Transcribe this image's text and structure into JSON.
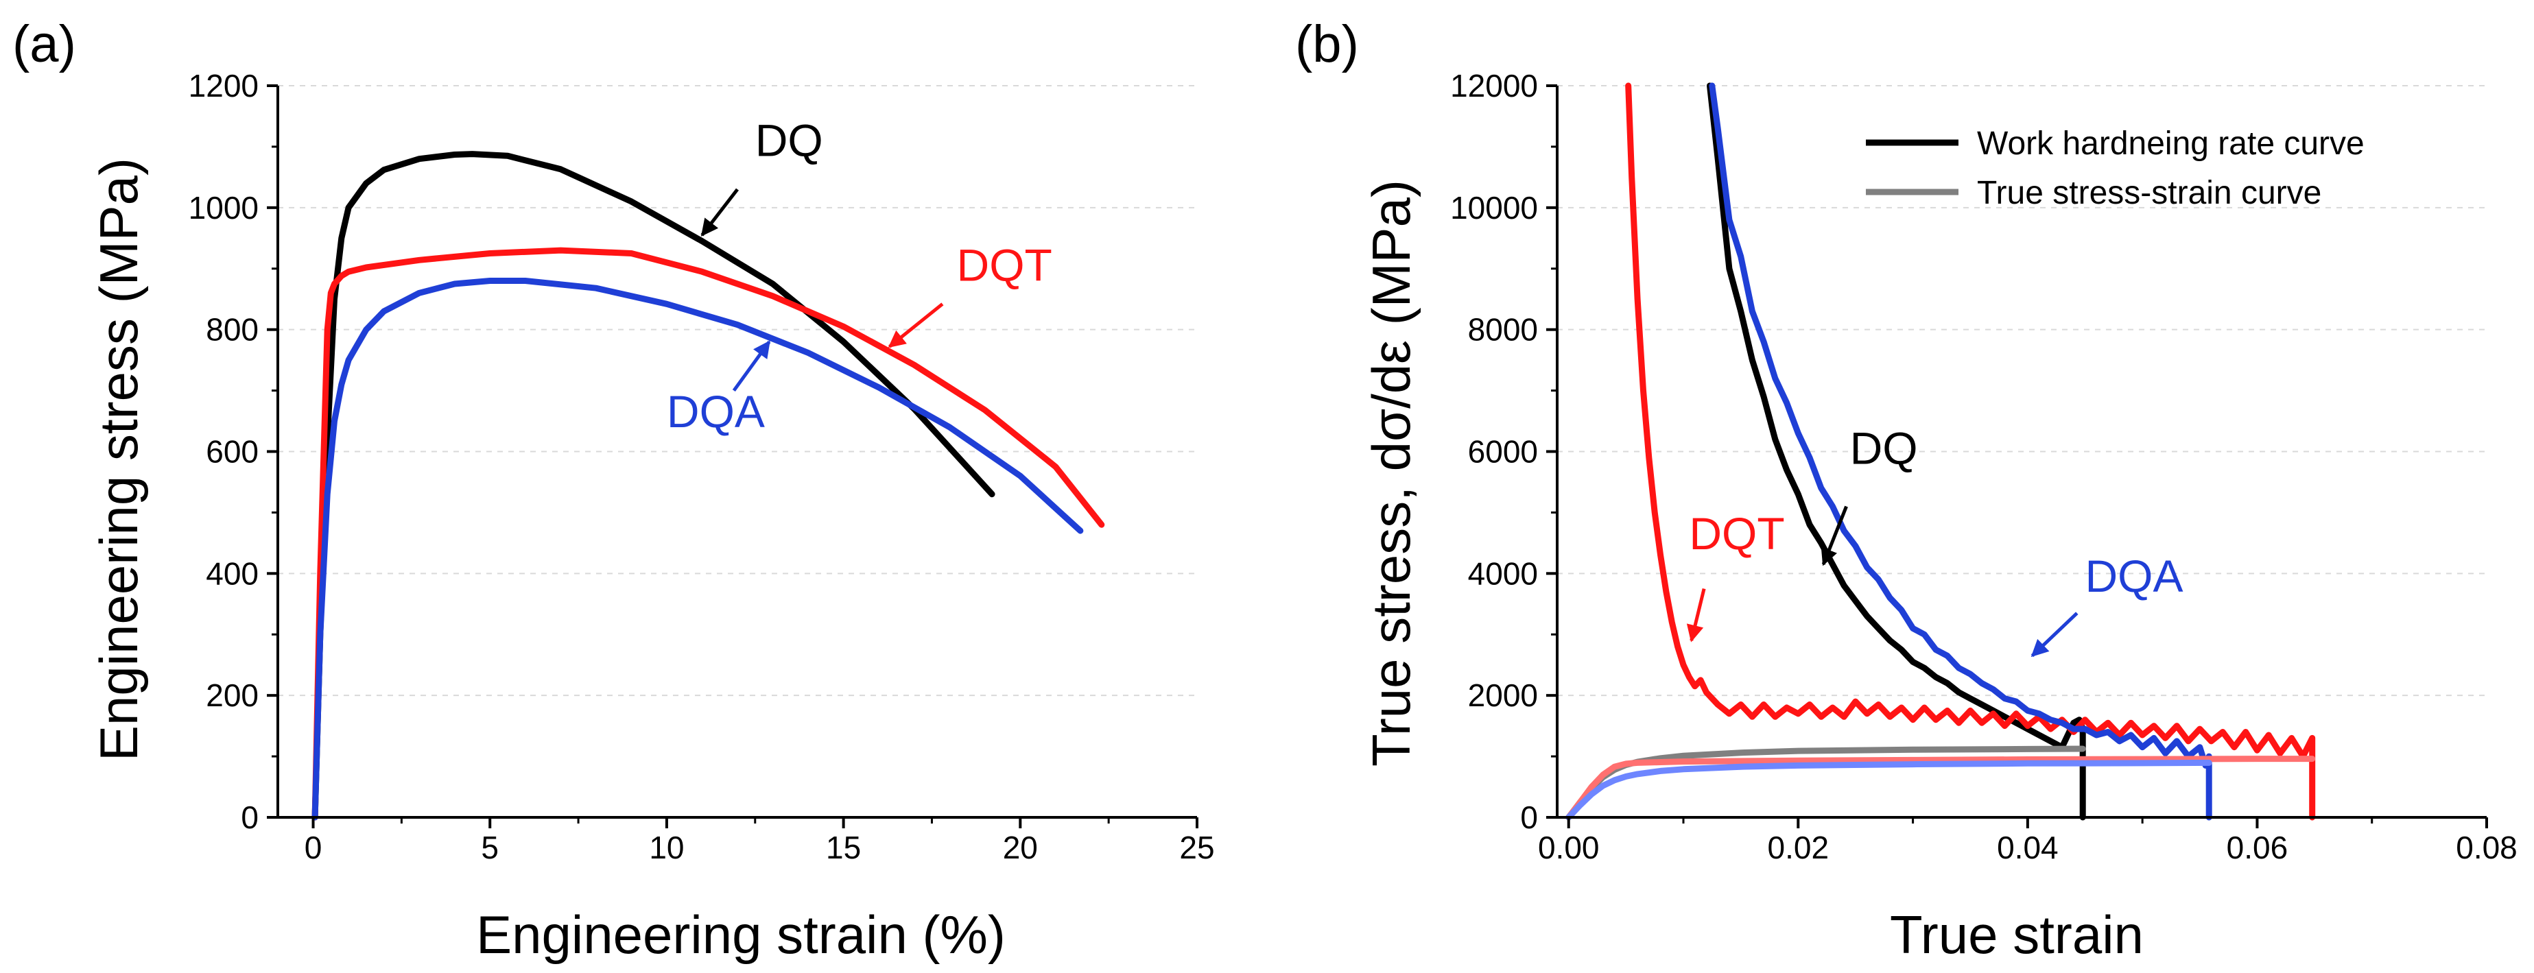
{
  "colors": {
    "DQ": "#000000",
    "DQT": "#ff1414",
    "DQA": "#1f3fd6",
    "DQ_true": "#808080",
    "DQT_true": "#ff7070",
    "DQA_true": "#6e86ff",
    "grid": "#d9d9d9"
  },
  "chart_data": [
    {
      "panel_label": "(a)",
      "type": "line",
      "title": "",
      "xlabel": "Engineering strain (%)",
      "ylabel": "Engineering stress (MPa)",
      "xlim": [
        -1,
        25
      ],
      "ylim": [
        0,
        1200
      ],
      "xticks": [
        "0",
        "5",
        "10",
        "15",
        "20",
        "25"
      ],
      "xtick_values": [
        0,
        5,
        10,
        15,
        20,
        25
      ],
      "yticks": [
        "0",
        "200",
        "400",
        "600",
        "800",
        "1000",
        "1200"
      ],
      "ytick_values": [
        0,
        200,
        400,
        600,
        800,
        1000,
        1200
      ],
      "grid": "horizontal dashed",
      "series": [
        {
          "name": "DQ",
          "color_key": "DQ",
          "x": [
            0.05,
            0.2,
            0.4,
            0.6,
            0.8,
            1.0,
            1.5,
            2,
            3,
            4,
            4.5,
            5.5,
            7,
            9,
            11,
            13,
            15,
            17,
            19.2
          ],
          "y": [
            0,
            300,
            620,
            850,
            950,
            1000,
            1040,
            1062,
            1080,
            1087,
            1088,
            1085,
            1063,
            1010,
            945,
            875,
            780,
            670,
            530
          ]
        },
        {
          "name": "DQT",
          "color_key": "DQT",
          "x": [
            0.05,
            0.2,
            0.4,
            0.5,
            0.6,
            0.8,
            1.0,
            1.5,
            3,
            5,
            7,
            9,
            11,
            13,
            15,
            17,
            19,
            21,
            22.3
          ],
          "y": [
            0,
            400,
            800,
            860,
            875,
            888,
            895,
            902,
            914,
            925,
            930,
            925,
            895,
            855,
            805,
            742,
            668,
            575,
            480
          ]
        },
        {
          "name": "DQA",
          "color_key": "DQA",
          "x": [
            0.05,
            0.2,
            0.4,
            0.6,
            0.8,
            1.0,
            1.5,
            2,
            3,
            4,
            5,
            6,
            8,
            10,
            12,
            14,
            16,
            18,
            20,
            21.7
          ],
          "y": [
            0,
            300,
            530,
            650,
            710,
            750,
            800,
            830,
            860,
            875,
            880,
            880,
            868,
            842,
            808,
            762,
            705,
            640,
            560,
            470
          ]
        }
      ],
      "annotations": [
        {
          "text": "DQ",
          "color_key": "DQ",
          "x": 12.5,
          "y": 1085,
          "arrow_from": [
            12.0,
            1030
          ],
          "arrow_to": [
            11.0,
            955
          ]
        },
        {
          "text": "DQT",
          "color_key": "DQT",
          "x": 18.2,
          "y": 880,
          "arrow_from": [
            17.8,
            842
          ],
          "arrow_to": [
            16.3,
            772
          ]
        },
        {
          "text": "DQA",
          "color_key": "DQA",
          "x": 10.0,
          "y": 640,
          "arrow_from": [
            11.9,
            700
          ],
          "arrow_to": [
            12.9,
            780
          ]
        }
      ]
    },
    {
      "panel_label": "(b)",
      "type": "line",
      "title": "",
      "xlabel": "True strain",
      "ylabel": "True stress, dσ/dε (MPa)",
      "xlim": [
        -0.001,
        0.08
      ],
      "ylim": [
        0,
        12000
      ],
      "xticks": [
        "0.00",
        "0.02",
        "0.04",
        "0.06",
        "0.08"
      ],
      "xtick_values": [
        0,
        0.02,
        0.04,
        0.06,
        0.08
      ],
      "yticks": [
        "0",
        "2000",
        "4000",
        "6000",
        "8000",
        "10000",
        "12000"
      ],
      "ytick_values": [
        0,
        2000,
        4000,
        6000,
        8000,
        10000,
        12000
      ],
      "grid": "horizontal dashed",
      "legend": {
        "position": "top-right",
        "entries": [
          {
            "label": "Work hardneing rate curve",
            "color_key": "DQ"
          },
          {
            "label": "True stress-strain curve",
            "color_key": "DQ_true"
          }
        ]
      },
      "series": [
        {
          "name": "DQ",
          "kind": "work hardening rate",
          "color_key": "DQ",
          "x": [
            0.0123,
            0.013,
            0.014,
            0.015,
            0.016,
            0.017,
            0.018,
            0.019,
            0.02,
            0.021,
            0.022,
            0.023,
            0.024,
            0.025,
            0.026,
            0.027,
            0.028,
            0.029,
            0.03,
            0.031,
            0.032,
            0.033,
            0.034,
            0.035,
            0.036,
            0.037,
            0.038,
            0.039,
            0.04,
            0.041,
            0.042,
            0.043,
            0.044,
            0.0445,
            0.0448,
            0.0448
          ],
          "y": [
            12000,
            10800,
            9000,
            8300,
            7500,
            6900,
            6200,
            5700,
            5300,
            4800,
            4500,
            4150,
            3800,
            3550,
            3300,
            3100,
            2900,
            2750,
            2550,
            2450,
            2300,
            2200,
            2050,
            1950,
            1850,
            1750,
            1650,
            1550,
            1450,
            1350,
            1250,
            1150,
            1550,
            1600,
            1450,
            0
          ]
        },
        {
          "name": "DQT",
          "kind": "work hardening rate",
          "color_key": "DQT",
          "x": [
            0.0052,
            0.0055,
            0.006,
            0.0065,
            0.007,
            0.0075,
            0.008,
            0.0085,
            0.009,
            0.0095,
            0.01,
            0.0105,
            0.011,
            0.0115,
            0.012,
            0.013,
            0.014,
            0.015,
            0.016,
            0.017,
            0.018,
            0.019,
            0.02,
            0.021,
            0.022,
            0.023,
            0.024,
            0.025,
            0.026,
            0.027,
            0.028,
            0.029,
            0.03,
            0.031,
            0.032,
            0.033,
            0.034,
            0.035,
            0.036,
            0.037,
            0.038,
            0.039,
            0.04,
            0.041,
            0.042,
            0.043,
            0.044,
            0.045,
            0.046,
            0.047,
            0.048,
            0.049,
            0.05,
            0.051,
            0.052,
            0.053,
            0.054,
            0.055,
            0.056,
            0.057,
            0.058,
            0.059,
            0.06,
            0.061,
            0.062,
            0.063,
            0.064,
            0.0648,
            0.0648
          ],
          "y": [
            12000,
            10500,
            8500,
            7000,
            5900,
            5000,
            4300,
            3700,
            3200,
            2800,
            2500,
            2300,
            2150,
            2250,
            2050,
            1850,
            1700,
            1850,
            1650,
            1850,
            1650,
            1800,
            1700,
            1850,
            1650,
            1800,
            1650,
            1900,
            1700,
            1850,
            1650,
            1800,
            1600,
            1800,
            1600,
            1750,
            1550,
            1750,
            1550,
            1700,
            1500,
            1700,
            1500,
            1650,
            1450,
            1600,
            1400,
            1600,
            1400,
            1550,
            1350,
            1550,
            1350,
            1500,
            1300,
            1500,
            1250,
            1450,
            1250,
            1400,
            1150,
            1400,
            1100,
            1350,
            1050,
            1300,
            1000,
            1300,
            0
          ]
        },
        {
          "name": "DQA",
          "kind": "work hardening rate",
          "color_key": "DQA",
          "x": [
            0.0125,
            0.013,
            0.014,
            0.015,
            0.016,
            0.017,
            0.018,
            0.019,
            0.02,
            0.021,
            0.022,
            0.023,
            0.024,
            0.025,
            0.026,
            0.027,
            0.028,
            0.029,
            0.03,
            0.031,
            0.032,
            0.033,
            0.034,
            0.035,
            0.036,
            0.037,
            0.038,
            0.039,
            0.04,
            0.041,
            0.042,
            0.043,
            0.044,
            0.045,
            0.046,
            0.047,
            0.048,
            0.049,
            0.05,
            0.051,
            0.052,
            0.053,
            0.054,
            0.055,
            0.0555,
            0.0558,
            0.0558
          ],
          "y": [
            12000,
            11300,
            9800,
            9200,
            8300,
            7800,
            7200,
            6800,
            6300,
            5900,
            5400,
            5100,
            4700,
            4450,
            4100,
            3900,
            3600,
            3400,
            3100,
            3000,
            2750,
            2650,
            2450,
            2350,
            2200,
            2100,
            1950,
            1900,
            1750,
            1700,
            1600,
            1550,
            1450,
            1450,
            1350,
            1400,
            1250,
            1350,
            1150,
            1300,
            1050,
            1250,
            1000,
            1150,
            850,
            1000,
            0
          ]
        },
        {
          "name": "DQ",
          "kind": "true stress-strain",
          "color_key": "DQ_true",
          "x": [
            0,
            0.001,
            0.002,
            0.003,
            0.004,
            0.005,
            0.006,
            0.008,
            0.01,
            0.015,
            0.02,
            0.03,
            0.04,
            0.0448
          ],
          "y": [
            0,
            250,
            480,
            660,
            780,
            860,
            910,
            970,
            1010,
            1060,
            1090,
            1110,
            1120,
            1125
          ]
        },
        {
          "name": "DQT",
          "kind": "true stress-strain",
          "color_key": "DQT_true",
          "x": [
            0,
            0.001,
            0.002,
            0.003,
            0.004,
            0.005,
            0.006,
            0.008,
            0.01,
            0.02,
            0.03,
            0.04,
            0.05,
            0.06,
            0.0648
          ],
          "y": [
            0,
            250,
            500,
            700,
            830,
            880,
            895,
            905,
            915,
            930,
            940,
            950,
            955,
            960,
            960
          ]
        },
        {
          "name": "DQA",
          "kind": "true stress-strain",
          "color_key": "DQA_true",
          "x": [
            0,
            0.001,
            0.002,
            0.003,
            0.004,
            0.005,
            0.006,
            0.008,
            0.01,
            0.015,
            0.02,
            0.03,
            0.04,
            0.05,
            0.0558
          ],
          "y": [
            0,
            200,
            380,
            520,
            610,
            670,
            710,
            760,
            790,
            830,
            850,
            870,
            885,
            890,
            895
          ]
        }
      ],
      "annotations": [
        {
          "text": "DQ",
          "color_key": "DQ",
          "x": 0.0245,
          "y": 5800,
          "arrow_from": [
            0.0242,
            5100
          ],
          "arrow_to": [
            0.0222,
            4150
          ]
        },
        {
          "text": "DQT",
          "color_key": "DQT",
          "x": 0.0105,
          "y": 4400,
          "arrow_from": [
            0.0118,
            3750
          ],
          "arrow_to": [
            0.0107,
            2900
          ]
        },
        {
          "text": "DQA",
          "color_key": "DQA",
          "x": 0.045,
          "y": 3700,
          "arrow_from": [
            0.0443,
            3350
          ],
          "arrow_to": [
            0.0404,
            2650
          ]
        }
      ]
    }
  ]
}
